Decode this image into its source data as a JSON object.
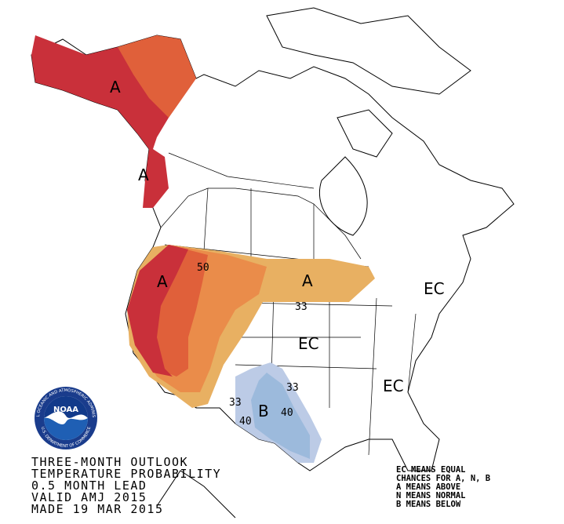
{
  "title_lines": [
    "THREE-MONTH OUTLOOK",
    "TEMPERATURE PROBABILITY",
    "0.5 MONTH LEAD",
    "VALID AMJ 2015",
    "MADE 19 MAR 2015"
  ],
  "legend_lines": [
    "EC MEANS EQUAL",
    "CHANCES FOR A, N, B",
    "A MEANS ABOVE",
    "N MEANS NORMAL",
    "B MEANS BELOW"
  ],
  "map_labels": [
    "A",
    "A",
    "A",
    "A",
    "EC",
    "EC",
    "EC",
    "B"
  ],
  "contour_labels": [
    50,
    33,
    33,
    33,
    40,
    40
  ],
  "logo": {
    "name": "NOAA",
    "ring_top": "NATIONAL OCEANIC AND ATMOSPHERIC ADMINISTRATION",
    "ring_bottom": "U.S. DEPARTMENT OF COMMERCE"
  }
}
